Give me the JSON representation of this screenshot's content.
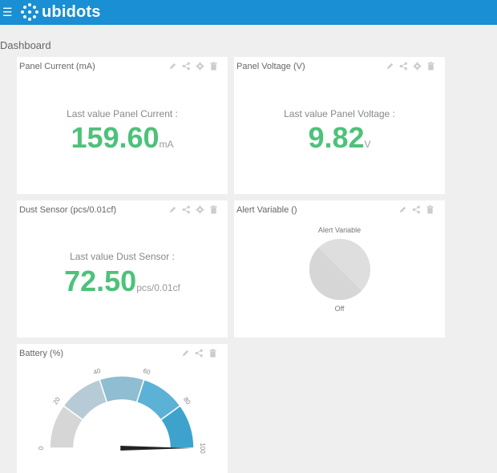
{
  "app": {
    "logo_text": "ubidots"
  },
  "page": {
    "title": "Dashboard"
  },
  "widgets": [
    {
      "title": "Panel Current (mA)",
      "label": "Last value Panel Current :",
      "value": "159.60",
      "unit": "mA"
    },
    {
      "title": "Panel Voltage (V)",
      "label": "Last value Panel Voltage :",
      "value": "9.82",
      "unit": "V"
    },
    {
      "title": "Dust Sensor (pcs/0.01cf)",
      "label": "Last value Dust Sensor :",
      "value": "72.50",
      "unit": "pcs/0.01cf"
    },
    {
      "title": "Alert Variable ()",
      "indicator_label": "Alert Variable",
      "state": "Off"
    },
    {
      "title": "Battery (%)",
      "gauge": {
        "min": 0,
        "max": 100,
        "ticks": [
          "0",
          "20",
          "40",
          "60",
          "80",
          "100"
        ],
        "value": 100
      }
    }
  ],
  "colors": {
    "accent": "#1a8fd3",
    "value": "#4cc27a"
  },
  "icons": [
    "menu-icon",
    "edit-icon",
    "share-icon",
    "gear-icon",
    "trash-icon"
  ]
}
